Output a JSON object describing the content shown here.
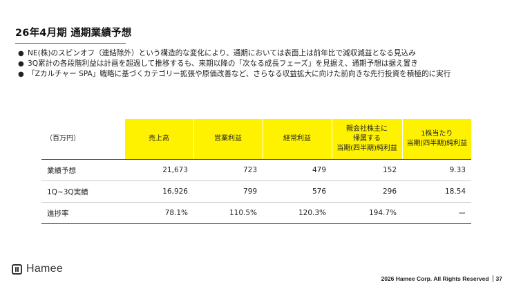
{
  "title": "26年4月期 通期業績予想",
  "bullets": [
    "NE(株)のスピンオフ（連結除外）という構造的な変化により、通期においては表面上は前年比で減収減益となる見込み",
    "3Q累計の各段階利益は計画を超過して推移するも、来期以降の「次なる成長フェーズ」を見据え、通期予想は据え置き",
    "「Zカルチャー SPA」戦略に基づくカテゴリー拡張や原価改善など、さらなる収益拡大に向けた前向きな先行投資を積極的に実行"
  ],
  "bullet_marker": "●",
  "table": {
    "unit": "（百万円）",
    "headers": [
      [
        "売上高"
      ],
      [
        "営業利益"
      ],
      [
        "経常利益"
      ],
      [
        "親会社株主に",
        "帰属する",
        "当期(四半期)純利益"
      ],
      [
        "1株当たり",
        "当期(四半期)純利益"
      ]
    ],
    "rows": [
      {
        "label": "業績予想",
        "values": [
          "21,673",
          "723",
          "479",
          "152",
          "9.33"
        ]
      },
      {
        "label": "1Q~3Q実績",
        "values": [
          "16,926",
          "799",
          "576",
          "296",
          "18.54"
        ]
      },
      {
        "label": "進捗率",
        "values": [
          "78.1%",
          "110.5%",
          "120.3%",
          "194.7%",
          "ー"
        ]
      }
    ],
    "header_color": "#fff200"
  },
  "logo": {
    "text": "Hamee",
    "icon": "hamee-logo-icon"
  },
  "footer": {
    "copyright": "2026 Hamee Corp. All Rights Reserved",
    "page_number": "37"
  }
}
